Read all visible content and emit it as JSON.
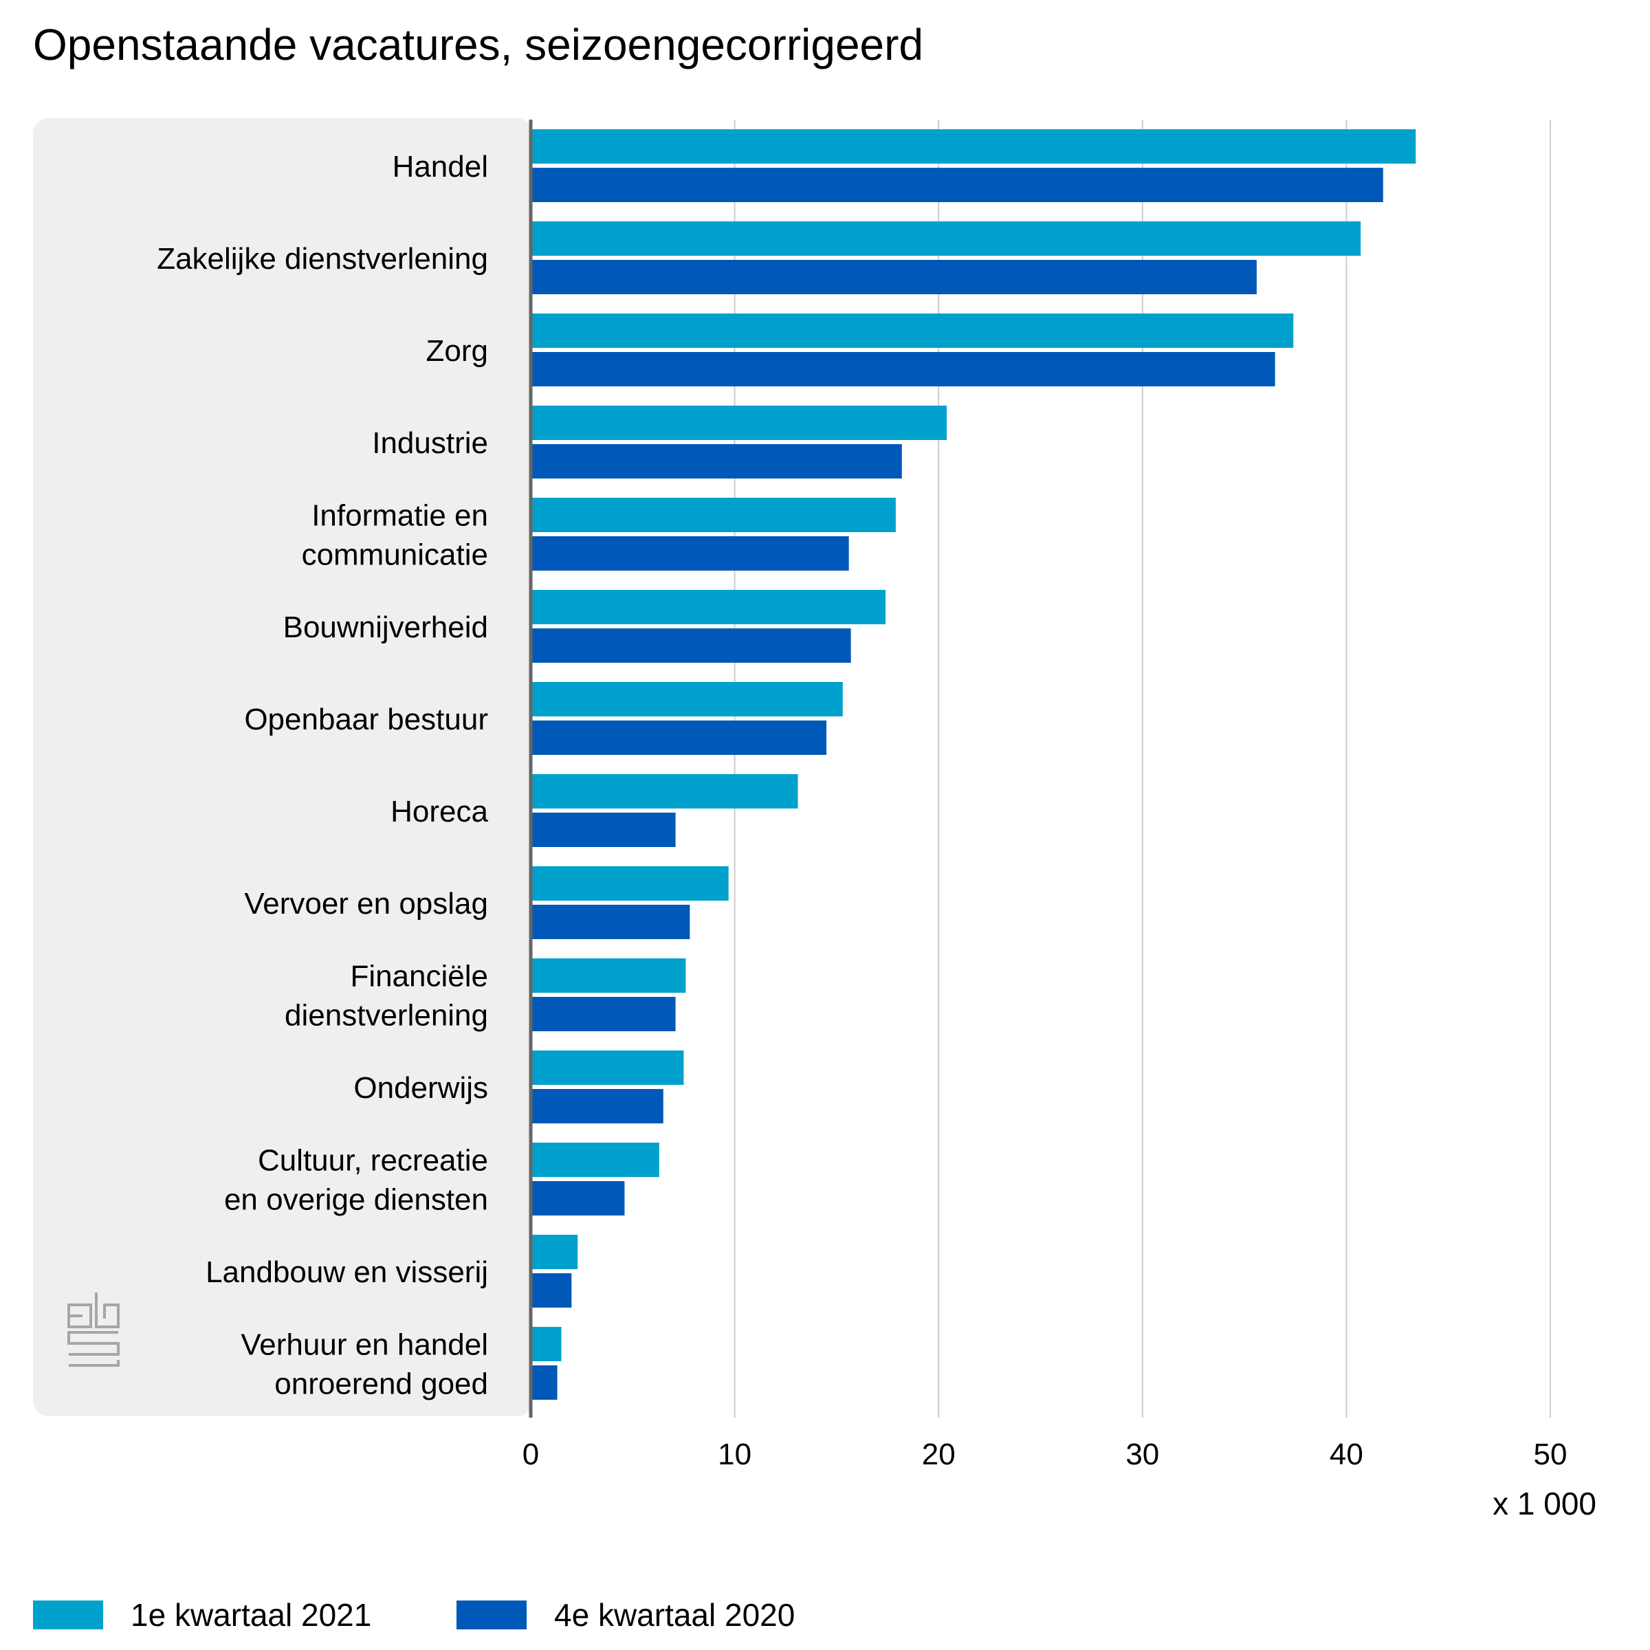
{
  "chart_data": {
    "type": "bar",
    "orientation": "horizontal",
    "title": "Openstaande vacatures, seizoengecorrigeerd",
    "unit_label": "x 1 000",
    "categories": [
      "Handel",
      "Zakelijke dienstverlening",
      "Zorg",
      "Industrie",
      "Informatie en communicatie",
      "Bouwnijverheid",
      "Openbaar bestuur",
      "Horeca",
      "Vervoer en opslag",
      "Financiële dienstverlening",
      "Onderwijs",
      "Cultuur, recreatie en overige diensten",
      "Landbouw en visserij",
      "Verhuur en handel onroerend goed"
    ],
    "category_lines": [
      [
        "Handel"
      ],
      [
        "Zakelijke dienstverlening"
      ],
      [
        "Zorg"
      ],
      [
        "Industrie"
      ],
      [
        "Informatie en",
        "communicatie"
      ],
      [
        "Bouwnijverheid"
      ],
      [
        "Openbaar bestuur"
      ],
      [
        "Horeca"
      ],
      [
        "Vervoer en opslag"
      ],
      [
        "Financiële",
        "dienstverlening"
      ],
      [
        "Onderwijs"
      ],
      [
        "Cultuur, recreatie",
        "en overige diensten"
      ],
      [
        "Landbouw en visserij"
      ],
      [
        "Verhuur en handel",
        "onroerend goed"
      ]
    ],
    "series": [
      {
        "name": "1e kwartaal 2021",
        "color": "#00a1cd",
        "values": [
          43.4,
          40.7,
          37.4,
          20.4,
          17.9,
          17.4,
          15.3,
          13.1,
          9.7,
          7.6,
          7.5,
          6.3,
          2.3,
          1.5
        ]
      },
      {
        "name": "4e kwartaal 2020",
        "color": "#0058b8",
        "values": [
          41.8,
          35.6,
          36.5,
          18.2,
          15.6,
          15.7,
          14.5,
          7.1,
          7.8,
          7.1,
          6.5,
          4.6,
          2.0,
          1.3
        ]
      }
    ],
    "xlim": [
      0,
      50
    ],
    "xticks": [
      "0",
      "10",
      "20",
      "30",
      "40",
      "50"
    ],
    "grid": true,
    "legend_position": "bottom-left",
    "colors": {
      "panel_background": "#efefef",
      "gridline": "#cccccc",
      "axis": "#666666"
    }
  }
}
